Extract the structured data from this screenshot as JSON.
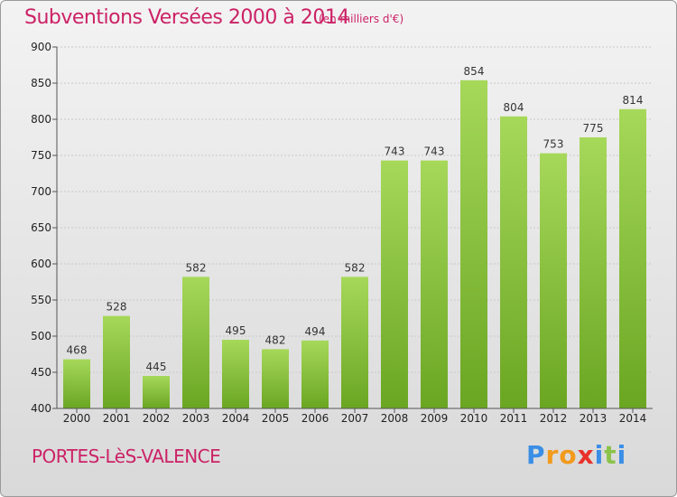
{
  "header": {
    "title": "Subventions Versées 2000 à 2014",
    "subtitle": "(en milliers d'€)"
  },
  "footer": {
    "commune": "PORTES-LèS-VALENCE",
    "logo_letters": [
      "P",
      "r",
      "o",
      "x",
      "i",
      "t",
      "i"
    ],
    "logo_colors": [
      "#3a8ee6",
      "#f29a1c",
      "#f29a1c",
      "#e8312a",
      "#3a8ee6",
      "#8bc34a",
      "#3a8ee6"
    ]
  },
  "chart_data": {
    "type": "bar",
    "title": "Subventions Versées 2000 à 2014",
    "subtitle": "(en milliers d'€)",
    "xlabel": "",
    "ylabel": "",
    "categories": [
      "2000",
      "2001",
      "2002",
      "2003",
      "2004",
      "2005",
      "2006",
      "2007",
      "2008",
      "2009",
      "2010",
      "2011",
      "2012",
      "2013",
      "2014"
    ],
    "values": [
      468,
      528,
      445,
      582,
      495,
      482,
      494,
      582,
      743,
      743,
      854,
      804,
      753,
      775,
      814
    ],
    "ylim": [
      400,
      900
    ],
    "yticks": [
      400,
      450,
      500,
      550,
      600,
      650,
      700,
      750,
      800,
      850,
      900
    ],
    "grid": true,
    "bar_color_top": "#a6d85a",
    "bar_color_bottom": "#6aa622",
    "text_color": "#cc2266"
  }
}
